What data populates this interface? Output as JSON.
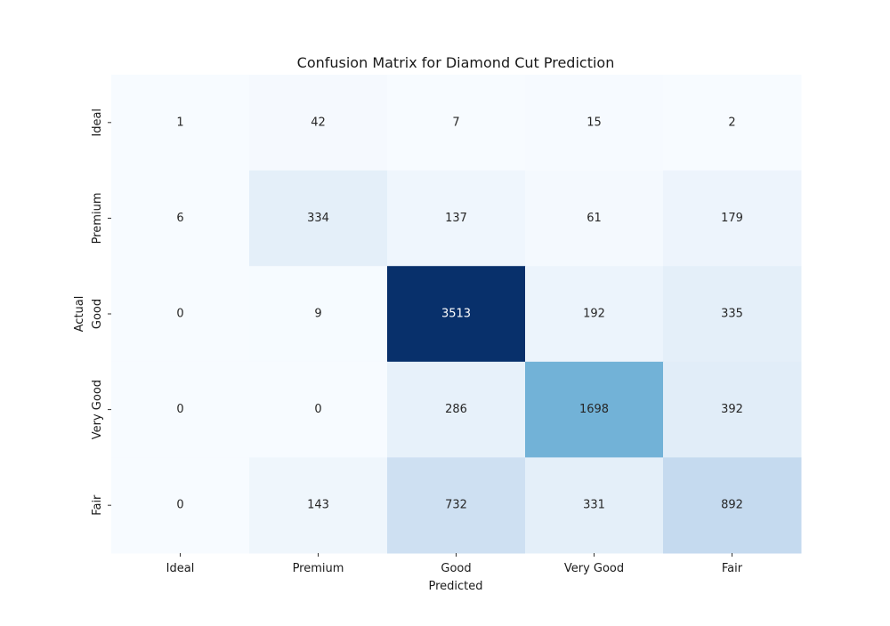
{
  "chart_data": {
    "type": "heatmap",
    "title": "Confusion Matrix for Diamond Cut Prediction",
    "xlabel": "Predicted",
    "ylabel": "Actual",
    "x_categories": [
      "Ideal",
      "Premium",
      "Good",
      "Very Good",
      "Fair"
    ],
    "y_categories": [
      "Ideal",
      "Premium",
      "Good",
      "Very Good",
      "Fair"
    ],
    "values": [
      [
        1,
        42,
        7,
        15,
        2
      ],
      [
        6,
        334,
        137,
        61,
        179
      ],
      [
        0,
        9,
        3513,
        192,
        335
      ],
      [
        0,
        0,
        286,
        1698,
        392
      ],
      [
        0,
        143,
        732,
        331,
        892
      ]
    ],
    "colormap": "Blues",
    "colorbar": false,
    "annotations": true
  }
}
